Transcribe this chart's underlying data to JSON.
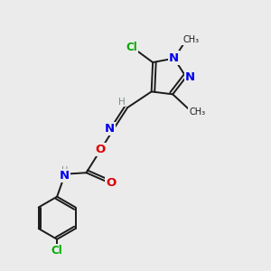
{
  "bg_color": "#ebebeb",
  "bond_color": "#1a1a1a",
  "bond_width": 1.4,
  "atom_colors": {
    "C": "#1a1a1a",
    "H": "#7a8a8a",
    "N": "#0000ee",
    "O": "#dd0000",
    "Cl": "#00aa00"
  },
  "font_size": 8.5,
  "figsize": [
    3.0,
    3.0
  ],
  "dpi": 100
}
